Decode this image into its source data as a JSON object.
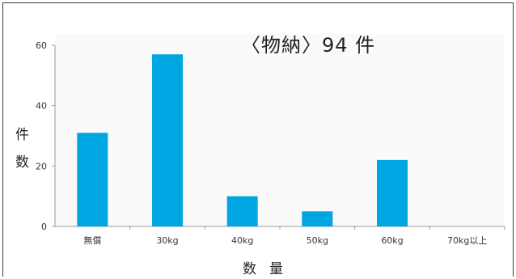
{
  "chart_data": {
    "type": "bar",
    "title": "〈物納〉94 件",
    "ylabel": [
      "件",
      "数"
    ],
    "xlabel": "数量",
    "categories": [
      "無償",
      "30kg",
      "40kg",
      "50kg",
      "60kg",
      "70kg以上"
    ],
    "values": [
      31,
      57,
      10,
      5,
      22,
      0
    ],
    "yticks": [
      0,
      20,
      40,
      60
    ],
    "ylim": [
      0,
      60
    ],
    "grid": false,
    "bar_color": "#00a6e2"
  }
}
